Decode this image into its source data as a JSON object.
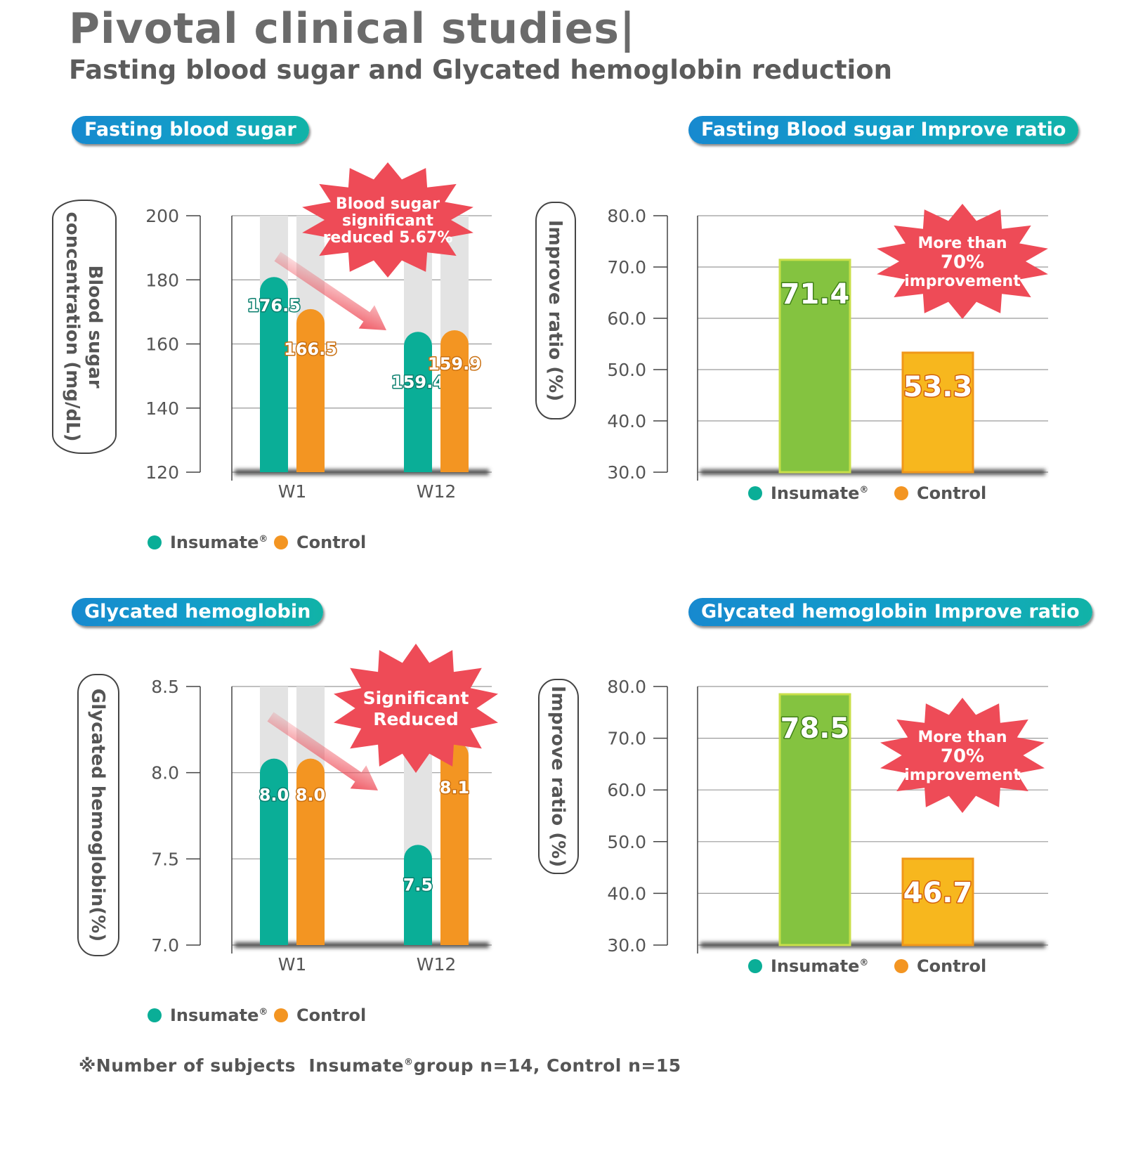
{
  "header": {
    "title": "Pivotal clinical studies|",
    "subtitle": "Fasting blood sugar and Glycated hemoglobin reduction"
  },
  "colors": {
    "insumate": "#0aae97",
    "control": "#f39522",
    "ratio_insumate": "#84c340",
    "ratio_control": "#f7b71e",
    "starburst": "#ee4b57",
    "pill_start": "#1789cf",
    "pill_end": "#11b3a7"
  },
  "footnote": {
    "prefix": "※Number of subjects",
    "brand": "Insumate",
    "reg": "®",
    "rest": "group n=14, Control n=15"
  },
  "chart_data": [
    {
      "id": "fbs",
      "type": "bar",
      "panel_title": "Fasting blood sugar",
      "ylabel_lines": [
        "Blood sugar",
        "concentration (mg/dL)"
      ],
      "ylim": [
        120,
        200
      ],
      "yticks": [
        "120",
        "140",
        "160",
        "180",
        "200"
      ],
      "categories": [
        "W1",
        "W12"
      ],
      "series": [
        {
          "name": "Insumate®",
          "values": [
            176.5,
            159.4
          ],
          "labels": [
            "176.5",
            "159.4"
          ]
        },
        {
          "name": "Control",
          "values": [
            166.5,
            159.9
          ],
          "labels": [
            "166.5",
            "159.9"
          ]
        }
      ],
      "legend": [
        {
          "name": "Insumate",
          "reg": "®"
        },
        {
          "name": "Control",
          "reg": ""
        }
      ],
      "annotation_lines": [
        "Blood sugar",
        "significant",
        "reduced 5.67%"
      ],
      "grid": true
    },
    {
      "id": "fbs_ratio",
      "type": "bar",
      "panel_title": "Fasting Blood sugar Improve ratio",
      "ylabel_lines": [
        "Improve ratio (%)"
      ],
      "ylim": [
        30,
        80
      ],
      "yticks": [
        "30.0",
        "40.0",
        "50.0",
        "60.0",
        "70.0",
        "80.0"
      ],
      "categories": [
        "Insumate®",
        "Control"
      ],
      "values": [
        71.4,
        53.3
      ],
      "labels": [
        "71.4",
        "53.3"
      ],
      "legend": [
        {
          "name": "Insumate",
          "reg": "®"
        },
        {
          "name": "Control",
          "reg": ""
        }
      ],
      "annotation_lines": [
        "More than",
        "70%",
        "improvement"
      ],
      "grid": true
    },
    {
      "id": "hba1c",
      "type": "bar",
      "panel_title": "Glycated hemoglobin",
      "ylabel_lines": [
        "Glycated hemoglobin(%)"
      ],
      "ylim": [
        7.0,
        8.5
      ],
      "yticks": [
        "7.0",
        "7.5",
        "8.0",
        "8.5"
      ],
      "categories": [
        "W1",
        "W12"
      ],
      "series": [
        {
          "name": "Insumate®",
          "values": [
            8.0,
            7.5
          ],
          "labels": [
            "8.0",
            "7.5"
          ]
        },
        {
          "name": "Control",
          "values": [
            8.0,
            8.1
          ],
          "labels": [
            "8.0",
            "8.1"
          ]
        }
      ],
      "legend": [
        {
          "name": "Insumate",
          "reg": "®"
        },
        {
          "name": "Control",
          "reg": ""
        }
      ],
      "annotation_lines": [
        "Significant",
        "Reduced"
      ],
      "grid": true
    },
    {
      "id": "hba1c_ratio",
      "type": "bar",
      "panel_title": "Glycated hemoglobin Improve ratio",
      "ylabel_lines": [
        "Improve ratio (%)"
      ],
      "ylim": [
        30,
        80
      ],
      "yticks": [
        "30.0",
        "40.0",
        "50.0",
        "60.0",
        "70.0",
        "80.0"
      ],
      "categories": [
        "Insumate®",
        "Control"
      ],
      "values": [
        78.5,
        46.7
      ],
      "labels": [
        "78.5",
        "46.7"
      ],
      "legend": [
        {
          "name": "Insumate",
          "reg": "®"
        },
        {
          "name": "Control",
          "reg": ""
        }
      ],
      "annotation_lines": [
        "More than",
        "70%",
        "improvement"
      ],
      "grid": true
    }
  ]
}
